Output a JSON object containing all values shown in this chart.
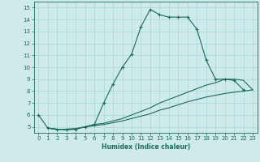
{
  "xlabel": "Humidex (Indice chaleur)",
  "bg_color": "#ceeaea",
  "line_color": "#1a6b5a",
  "grid_color": "#a8d8d8",
  "xlim": [
    -0.5,
    23.5
  ],
  "ylim": [
    4.5,
    15.5
  ],
  "xticks": [
    0,
    1,
    2,
    3,
    4,
    5,
    6,
    7,
    8,
    9,
    10,
    11,
    12,
    13,
    14,
    15,
    16,
    17,
    18,
    19,
    20,
    21,
    22,
    23
  ],
  "yticks": [
    5,
    6,
    7,
    8,
    9,
    10,
    11,
    12,
    13,
    14,
    15
  ],
  "lines": [
    {
      "x": [
        0,
        1,
        2,
        3,
        4,
        5,
        6,
        7,
        8,
        9,
        10,
        11,
        12,
        13,
        14,
        15,
        16,
        17,
        18,
        19,
        20,
        21,
        22
      ],
      "y": [
        6.0,
        4.9,
        4.8,
        4.75,
        4.8,
        5.0,
        5.2,
        7.0,
        8.6,
        10.0,
        11.1,
        13.4,
        14.85,
        14.4,
        14.2,
        14.2,
        14.2,
        13.2,
        10.6,
        9.0,
        9.0,
        8.9,
        8.1
      ],
      "marker": true
    },
    {
      "x": [
        1,
        2,
        3,
        4,
        5,
        6,
        7,
        8,
        9,
        10,
        11,
        12,
        13,
        14,
        15,
        16,
        17,
        18,
        19,
        20,
        21,
        22,
        23
      ],
      "y": [
        4.9,
        4.8,
        4.8,
        4.85,
        5.0,
        5.2,
        5.3,
        5.5,
        5.7,
        6.0,
        6.3,
        6.6,
        7.0,
        7.3,
        7.6,
        7.9,
        8.2,
        8.5,
        8.7,
        9.0,
        9.0,
        8.9,
        8.1
      ],
      "marker": false
    },
    {
      "x": [
        1,
        2,
        3,
        4,
        5,
        6,
        7,
        8,
        9,
        10,
        11,
        12,
        13,
        14,
        15,
        16,
        17,
        18,
        19,
        20,
        21,
        22,
        23
      ],
      "y": [
        4.9,
        4.8,
        4.8,
        4.85,
        5.0,
        5.1,
        5.2,
        5.35,
        5.5,
        5.7,
        5.9,
        6.1,
        6.4,
        6.6,
        6.85,
        7.1,
        7.3,
        7.5,
        7.65,
        7.8,
        7.9,
        8.0,
        8.1
      ],
      "marker": false
    }
  ]
}
